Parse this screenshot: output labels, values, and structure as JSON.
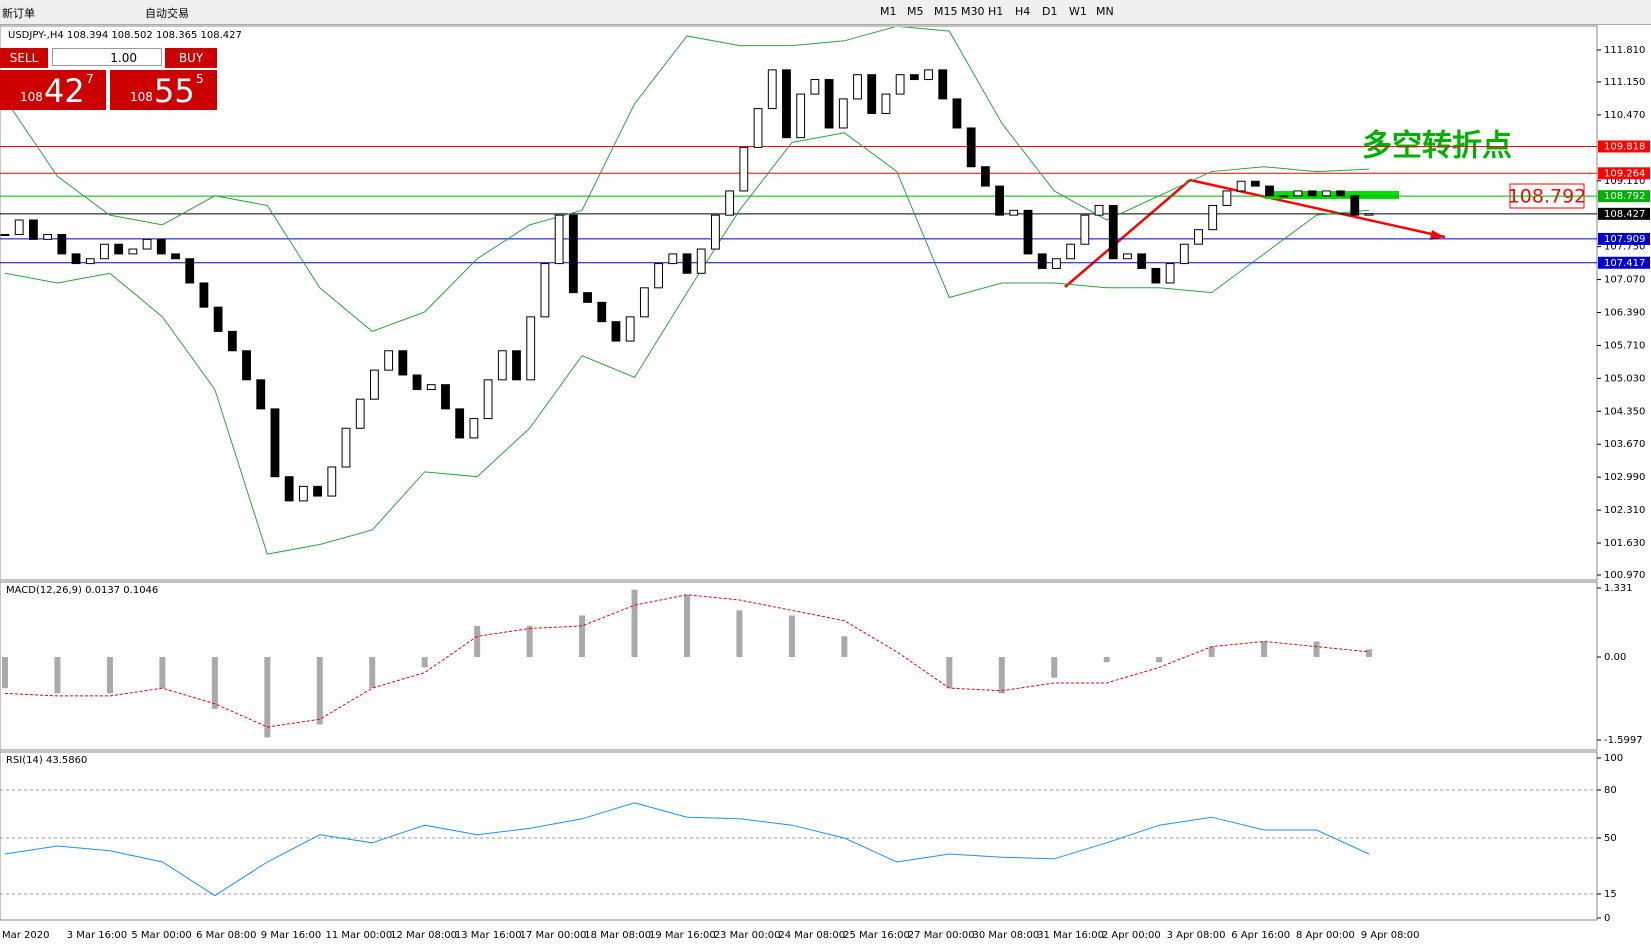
{
  "toolbar": {
    "new_order": "新订单",
    "auto_trading": "自动交易",
    "timeframes": [
      "M1",
      "M5",
      "M15",
      "M30",
      "H1",
      "H4",
      "D1",
      "W1",
      "MN"
    ]
  },
  "trade_panel": {
    "sell": "SELL",
    "buy": "BUY",
    "lots": "1.00",
    "sell_big": "108",
    "sell_digits": "42",
    "sell_sup": "7",
    "buy_big": "108",
    "buy_digits": "55",
    "buy_sup": "5"
  },
  "chart": {
    "header": "USDJPY-,H4  108.394 108.502 108.365 108.427",
    "ylim": [
      100.97,
      111.81
    ],
    "yticks": [
      {
        "value": 111.81,
        "label": "111.810"
      },
      {
        "value": 111.15,
        "label": "111.150"
      },
      {
        "value": 110.47,
        "label": "110.470"
      },
      {
        "value": 109.11,
        "label": "109.110"
      },
      {
        "value": 107.75,
        "label": "107.750"
      },
      {
        "value": 107.07,
        "label": "107.070"
      },
      {
        "value": 106.39,
        "label": "106.390"
      },
      {
        "value": 105.71,
        "label": "105.710"
      },
      {
        "value": 105.03,
        "label": "105.030"
      },
      {
        "value": 104.35,
        "label": "104.350"
      },
      {
        "value": 103.67,
        "label": "103.670"
      },
      {
        "value": 102.99,
        "label": "102.990"
      },
      {
        "value": 102.31,
        "label": "102.310"
      },
      {
        "value": 101.63,
        "label": "101.630"
      },
      {
        "value": 100.97,
        "label": "100.970"
      }
    ],
    "levels": [
      {
        "value": 109.818,
        "color": "#ff0000"
      },
      {
        "value": 109.264,
        "color": "#ff0000"
      },
      {
        "value": 108.792,
        "color": "#00b000"
      },
      {
        "value": 108.427,
        "color": "#000000"
      },
      {
        "value": 107.909,
        "color": "#0000cc"
      },
      {
        "value": 107.417,
        "color": "#0000cc"
      }
    ],
    "closes": [
      108.0,
      108.3,
      107.9,
      108.0,
      107.6,
      107.4,
      107.5,
      107.8,
      107.6,
      107.7,
      107.9,
      107.6,
      107.5,
      107.0,
      106.5,
      106.0,
      105.6,
      105.0,
      104.4,
      103.0,
      102.5,
      102.8,
      102.6,
      103.2,
      104.0,
      104.6,
      105.2,
      105.6,
      105.1,
      104.8,
      104.9,
      104.4,
      103.8,
      104.2,
      105.0,
      105.6,
      105.0,
      106.3,
      107.4,
      108.4,
      106.8,
      106.6,
      106.2,
      105.8,
      106.3,
      106.9,
      107.4,
      107.6,
      107.2,
      107.7,
      108.4,
      108.9,
      109.8,
      110.6,
      111.4,
      110.0,
      110.9,
      111.2,
      110.2,
      110.8,
      111.3,
      110.5,
      110.9,
      111.3,
      111.2,
      111.4,
      110.8,
      110.2,
      109.4,
      109.0,
      108.4,
      108.5,
      107.6,
      107.3,
      107.5,
      107.8,
      108.4,
      108.6,
      107.5,
      107.6,
      107.3,
      107.0,
      107.4,
      107.8,
      108.1,
      108.6,
      108.9,
      109.1,
      109.0,
      108.8,
      108.8,
      108.9,
      108.8,
      108.9,
      108.8,
      108.4,
      108.43
    ],
    "bb_upper": [
      110.8,
      109.2,
      108.4,
      108.2,
      108.8,
      108.6,
      106.9,
      106.0,
      106.4,
      107.5,
      108.2,
      108.5,
      110.7,
      112.1,
      111.9,
      111.9,
      112.0,
      112.3,
      112.2,
      110.3,
      108.9,
      108.3,
      108.8,
      109.3,
      109.4,
      109.3,
      109.35
    ],
    "bb_lower": [
      107.2,
      107.0,
      107.2,
      106.3,
      104.8,
      101.4,
      101.6,
      101.9,
      103.1,
      103.0,
      104.0,
      105.5,
      105.05,
      106.8,
      108.5,
      109.9,
      110.1,
      109.3,
      106.7,
      107.0,
      107.0,
      106.9,
      106.9,
      106.8,
      107.6,
      108.4,
      108.5
    ],
    "time_labels": [
      "Mar 2020",
      "3 Mar 16:00",
      "5 Mar 00:00",
      "6 Mar 08:00",
      "9 Mar 16:00",
      "11 Mar 00:00",
      "12 Mar 08:00",
      "13 Mar 16:00",
      "17 Mar 00:00",
      "18 Mar 08:00",
      "19 Mar 16:00",
      "23 Mar 00:00",
      "24 Mar 08:00",
      "25 Mar 16:00",
      "27 Mar 00:00",
      "30 Mar 08:00",
      "31 Mar 16:00",
      "2 Apr 00:00",
      "3 Apr 08:00",
      "6 Apr 16:00",
      "8 Apr 00:00",
      "9 Apr 08:00"
    ],
    "annotation": "多空转折点",
    "price_callout": "108.792"
  },
  "macd": {
    "label": "MACD(12,26,9) 0.0137 0.1046",
    "ylim": [
      -1.5997,
      1.331
    ],
    "yticks": [
      {
        "value": 1.331,
        "label": "1.331"
      },
      {
        "value": 0,
        "label": "0.00"
      },
      {
        "value": -1.5997,
        "label": "-1.5997"
      }
    ],
    "hist": [
      -0.6,
      -0.7,
      -0.7,
      -0.6,
      -1.0,
      -1.55,
      -1.3,
      -0.6,
      -0.2,
      0.6,
      0.6,
      0.8,
      1.3,
      1.2,
      0.9,
      0.8,
      0.4,
      0.0,
      -0.6,
      -0.7,
      -0.4,
      -0.1,
      -0.1,
      0.2,
      0.3,
      0.3,
      0.15
    ],
    "signal": [
      -0.7,
      -0.75,
      -0.75,
      -0.6,
      -0.9,
      -1.35,
      -1.2,
      -0.6,
      -0.3,
      0.4,
      0.55,
      0.6,
      1.0,
      1.2,
      1.1,
      0.9,
      0.7,
      0.1,
      -0.6,
      -0.65,
      -0.5,
      -0.5,
      -0.2,
      0.2,
      0.3,
      0.2,
      0.1
    ]
  },
  "rsi": {
    "label": "RSI(14) 43.5860",
    "ylim": [
      0,
      100
    ],
    "yticks": [
      100,
      80,
      50,
      15,
      0
    ],
    "grid": [
      80,
      50,
      15
    ],
    "values": [
      40,
      45,
      42,
      35,
      14,
      35,
      52,
      47,
      58,
      52,
      56,
      62,
      72,
      63,
      62,
      58,
      50,
      35,
      40,
      38,
      37,
      47,
      58,
      63,
      55,
      55,
      40
    ]
  }
}
